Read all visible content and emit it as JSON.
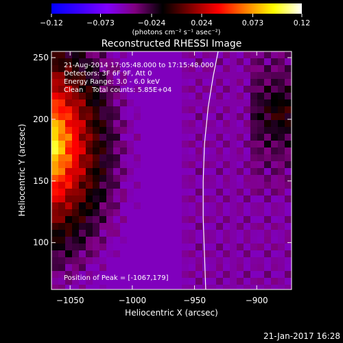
{
  "chart_data": {
    "type": "heatmap",
    "title": "Reconstructed RHESSI Image",
    "xlabel": "Heliocentric X (arcsec)",
    "ylabel": "Heliocentric Y (arcsec)",
    "xlim": [
      -1065,
      -872
    ],
    "ylim": [
      62,
      255
    ],
    "xticks": [
      -1050,
      -1000,
      -950,
      -900
    ],
    "yticks": [
      100,
      150,
      200,
      250
    ],
    "xtick_labels": [
      "−1050",
      "−1000",
      "−950",
      "−900"
    ],
    "ytick_labels": [
      "100",
      "150",
      "200",
      "250"
    ],
    "colorbar": {
      "range": [
        -0.12,
        0.12
      ],
      "ticks": [
        -0.12,
        -0.073,
        -0.024,
        0.024,
        0.073,
        0.12
      ],
      "tick_labels": [
        "−0.12",
        "−0.073",
        "−0.024",
        "0.024",
        "0.073",
        "0.12"
      ],
      "units": "(photons cm⁻² s⁻¹ asec⁻²)",
      "colormap": [
        "#0000ff",
        "#3a00ff",
        "#8000ff",
        "#800080",
        "#000000",
        "#800000",
        "#ff0000",
        "#ff8000",
        "#ffff00",
        "#ffffff"
      ]
    },
    "annotations": [
      "21-Aug-2014 17:05:48.000 to 17:15:48.000",
      "Detectors: 3F 6F 9F, Att 0",
      "Energy Range: 3.0 - 6.0 keV",
      "Clean    Total counts: 5.85E+04"
    ],
    "peak_label": "Position of Peak = [-1067,179]",
    "limb_curve": {
      "x": [
        -941,
        -942,
        -943,
        -943,
        -942,
        -939,
        -935,
        -931
      ],
      "y": [
        62,
        90,
        120,
        150,
        180,
        210,
        235,
        255
      ]
    },
    "peak": {
      "x": -1067,
      "y": 179
    }
  },
  "footer": {
    "date": "21-Jan-2017 16:28"
  }
}
